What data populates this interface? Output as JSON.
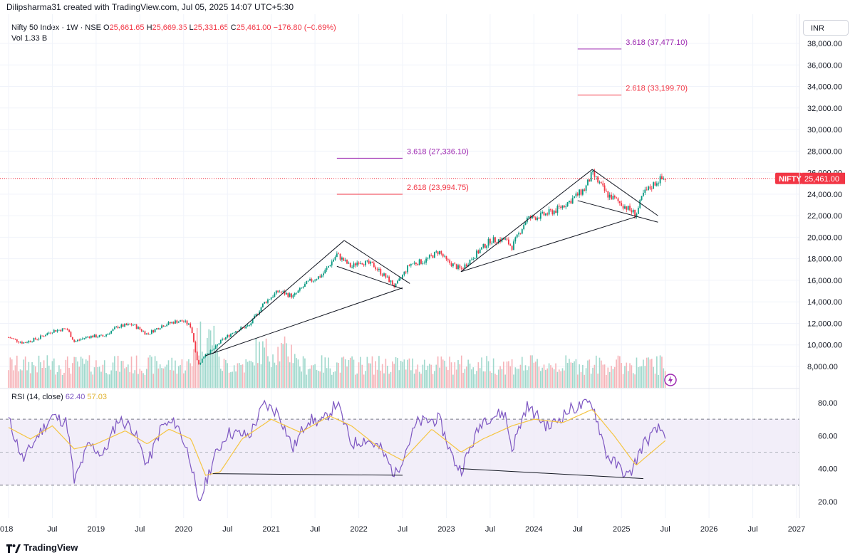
{
  "header": {
    "title": "Dilipsharma31 created with TradingView.com, Jul 05, 2025 14:07 UTC+5:30"
  },
  "legend": {
    "symbol": "Nifty 50 Index · 1W · NSE",
    "o_label": "O",
    "o": "25,661.65",
    "h_label": "H",
    "h": "25,669.35",
    "l_label": "L",
    "l": "25,331.65",
    "c_label": "C",
    "c": "25,461.00",
    "chg": "−176.80 (−0.69%)",
    "vol_label": "Vol",
    "vol": "1.33 B"
  },
  "currency": "INR",
  "price_badge": {
    "symbol": "NIFTY",
    "value": "25,461.00",
    "color": "#f23645"
  },
  "rsi_legend": {
    "label": "RSI (14, close)",
    "rsi": "62.40",
    "ma": "57.03"
  },
  "brand": "TradingView",
  "chart_data": {
    "type": "candlestick",
    "price_axis": {
      "ticks": [
        "38,000.00",
        "36,000.00",
        "34,000.00",
        "32,000.00",
        "30,000.00",
        "28,000.00",
        "26,000.00",
        "24,000.00",
        "22,000.00",
        "20,000.00",
        "18,000.00",
        "16,000.00",
        "14,000.00",
        "12,000.00",
        "10,000.00",
        "8,000.00"
      ]
    },
    "rsi_axis": {
      "ticks": [
        "80.00",
        "60.00",
        "40.00",
        "20.00"
      ],
      "band": [
        30,
        70
      ]
    },
    "time_axis": [
      "2018",
      "Jul",
      "2019",
      "Jul",
      "2020",
      "Jul",
      "2021",
      "Jul",
      "2022",
      "Jul",
      "2023",
      "Jul",
      "2024",
      "Jul",
      "2025",
      "Jul",
      "2026",
      "Jul",
      "2027"
    ],
    "x_range": [
      "2018-01",
      "2027-01"
    ],
    "price_range": [
      7000,
      39000
    ],
    "last_price": 25461,
    "fib_levels": [
      {
        "label": "3.618 (27,336.10)",
        "value": 27336.1,
        "color": "#9c27b0",
        "from": "2021-10",
        "to": "2022-07"
      },
      {
        "label": "2.618 (23,994.75)",
        "value": 23994.75,
        "color": "#f23645",
        "from": "2021-10",
        "to": "2022-07"
      },
      {
        "label": "3.618 (37,477.10)",
        "value": 37477.1,
        "color": "#9c27b0",
        "from": "2024-07",
        "to": "2025-01"
      },
      {
        "label": "2.618 (33,199.70)",
        "value": 33199.7,
        "color": "#f23645",
        "from": "2024-07",
        "to": "2025-01"
      }
    ],
    "price_path": [
      [
        "2018-01",
        10700
      ],
      [
        "2018-03",
        10200
      ],
      [
        "2018-05",
        10600
      ],
      [
        "2018-07",
        11300
      ],
      [
        "2018-09",
        11500
      ],
      [
        "2018-10",
        10300
      ],
      [
        "2018-12",
        10800
      ],
      [
        "2019-02",
        10800
      ],
      [
        "2019-04",
        11700
      ],
      [
        "2019-06",
        11900
      ],
      [
        "2019-08",
        11000
      ],
      [
        "2019-10",
        11800
      ],
      [
        "2019-12",
        12200
      ],
      [
        "2020-01",
        12200
      ],
      [
        "2020-02",
        11700
      ],
      [
        "2020-03",
        8100
      ],
      [
        "2020-04",
        9200
      ],
      [
        "2020-05",
        9500
      ],
      [
        "2020-06",
        10300
      ],
      [
        "2020-08",
        11300
      ],
      [
        "2020-10",
        11800
      ],
      [
        "2020-12",
        13900
      ],
      [
        "2021-02",
        15000
      ],
      [
        "2021-04",
        14500
      ],
      [
        "2021-06",
        15800
      ],
      [
        "2021-08",
        16500
      ],
      [
        "2021-10",
        18400
      ],
      [
        "2021-12",
        17200
      ],
      [
        "2022-01",
        17800
      ],
      [
        "2022-03",
        17400
      ],
      [
        "2022-05",
        16100
      ],
      [
        "2022-06",
        15400
      ],
      [
        "2022-08",
        17500
      ],
      [
        "2022-10",
        17800
      ],
      [
        "2022-12",
        18700
      ],
      [
        "2023-01",
        17800
      ],
      [
        "2023-03",
        17000
      ],
      [
        "2023-05",
        18400
      ],
      [
        "2023-07",
        19700
      ],
      [
        "2023-09",
        19800
      ],
      [
        "2023-10",
        19100
      ],
      [
        "2023-12",
        21700
      ],
      [
        "2024-02",
        22000
      ],
      [
        "2024-04",
        22500
      ],
      [
        "2024-06",
        23400
      ],
      [
        "2024-08",
        24500
      ],
      [
        "2024-09",
        25900
      ],
      [
        "2024-11",
        24000
      ],
      [
        "2025-01",
        23100
      ],
      [
        "2025-03",
        22100
      ],
      [
        "2025-04",
        24000
      ],
      [
        "2025-06",
        25300
      ],
      [
        "2025-07",
        25461
      ]
    ],
    "rsi_path": [
      [
        "2018-01",
        70
      ],
      [
        "2018-03",
        45
      ],
      [
        "2018-05",
        60
      ],
      [
        "2018-07",
        72
      ],
      [
        "2018-09",
        68
      ],
      [
        "2018-10",
        32
      ],
      [
        "2018-12",
        55
      ],
      [
        "2019-02",
        48
      ],
      [
        "2019-04",
        70
      ],
      [
        "2019-06",
        65
      ],
      [
        "2019-08",
        42
      ],
      [
        "2019-10",
        66
      ],
      [
        "2019-12",
        68
      ],
      [
        "2020-02",
        45
      ],
      [
        "2020-03",
        17
      ],
      [
        "2020-05",
        45
      ],
      [
        "2020-07",
        62
      ],
      [
        "2020-10",
        60
      ],
      [
        "2020-12",
        79
      ],
      [
        "2021-02",
        74
      ],
      [
        "2021-04",
        52
      ],
      [
        "2021-06",
        70
      ],
      [
        "2021-08",
        68
      ],
      [
        "2021-10",
        80
      ],
      [
        "2021-12",
        55
      ],
      [
        "2022-02",
        58
      ],
      [
        "2022-04",
        52
      ],
      [
        "2022-06",
        36
      ],
      [
        "2022-09",
        68
      ],
      [
        "2022-12",
        70
      ],
      [
        "2023-02",
        45
      ],
      [
        "2023-03",
        39
      ],
      [
        "2023-06",
        70
      ],
      [
        "2023-09",
        74
      ],
      [
        "2023-10",
        52
      ],
      [
        "2023-12",
        78
      ],
      [
        "2024-03",
        65
      ],
      [
        "2024-06",
        76
      ],
      [
        "2024-09",
        80
      ],
      [
        "2024-11",
        48
      ],
      [
        "2025-02",
        35
      ],
      [
        "2025-04",
        55
      ],
      [
        "2025-06",
        64
      ],
      [
        "2025-07",
        62
      ]
    ],
    "rsi_ma_path": [
      [
        "2018-01",
        65
      ],
      [
        "2018-04",
        58
      ],
      [
        "2018-07",
        66
      ],
      [
        "2018-10",
        52
      ],
      [
        "2019-01",
        55
      ],
      [
        "2019-05",
        63
      ],
      [
        "2019-08",
        55
      ],
      [
        "2019-11",
        64
      ],
      [
        "2020-02",
        58
      ],
      [
        "2020-04",
        36
      ],
      [
        "2020-06",
        38
      ],
      [
        "2020-09",
        58
      ],
      [
        "2021-01",
        70
      ],
      [
        "2021-05",
        62
      ],
      [
        "2021-09",
        72
      ],
      [
        "2021-12",
        66
      ],
      [
        "2022-04",
        52
      ],
      [
        "2022-07",
        45
      ],
      [
        "2022-11",
        64
      ],
      [
        "2023-03",
        50
      ],
      [
        "2023-06",
        58
      ],
      [
        "2023-10",
        66
      ],
      [
        "2024-01",
        70
      ],
      [
        "2024-05",
        68
      ],
      [
        "2024-09",
        76
      ],
      [
        "2024-12",
        60
      ],
      [
        "2025-03",
        42
      ],
      [
        "2025-07",
        57
      ]
    ],
    "volume_series_note": "",
    "trendlines_price": [
      {
        "from": [
          "2020-04",
          9000
        ],
        "to": [
          "2022-07",
          15300
        ]
      },
      {
        "from": [
          "2020-05",
          9200
        ],
        "to": [
          "2021-11",
          19700
        ]
      },
      {
        "from": [
          "2021-11",
          19700
        ],
        "to": [
          "2022-08",
          15700
        ]
      },
      {
        "from": [
          "2021-10",
          17300
        ],
        "to": [
          "2022-07",
          15200
        ]
      },
      {
        "from": [
          "2023-03",
          16800
        ],
        "to": [
          "2025-03",
          21900
        ]
      },
      {
        "from": [
          "2023-03",
          16800
        ],
        "to": [
          "2024-09",
          26300
        ]
      },
      {
        "from": [
          "2024-09",
          26300
        ],
        "to": [
          "2025-06",
          22000
        ]
      },
      {
        "from": [
          "2024-07",
          23400
        ],
        "to": [
          "2025-06",
          21400
        ]
      }
    ],
    "trendlines_rsi": [
      {
        "from": [
          "2020-05",
          37
        ],
        "to": [
          "2022-07",
          36
        ]
      },
      {
        "from": [
          "2023-03",
          40
        ],
        "to": [
          "2025-04",
          34
        ]
      }
    ]
  }
}
